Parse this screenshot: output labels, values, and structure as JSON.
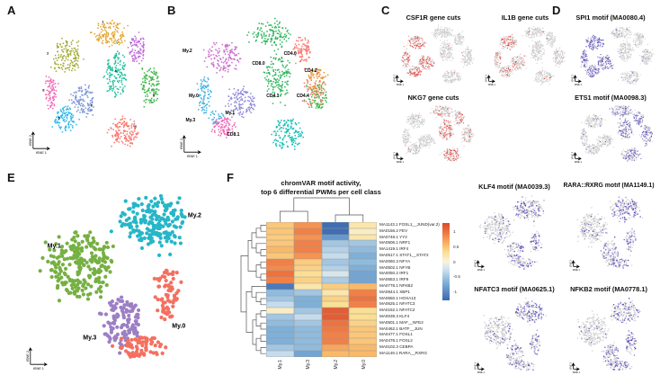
{
  "figure": {
    "panel_labels": {
      "A": "A",
      "B": "B",
      "C": "C",
      "D": "D",
      "E": "E",
      "F": "F"
    },
    "axis": {
      "x": "tSNE 1",
      "y": "tSNE 2"
    }
  },
  "panelC": {
    "plots": [
      {
        "title": "CSF1R gene cuts"
      },
      {
        "title": "IL1B gene cuts"
      },
      {
        "title": "NKG7 gene cuts"
      }
    ]
  },
  "panelD": {
    "plots": [
      {
        "title": "SPI1 motif (MA0080.4)"
      },
      {
        "title": "ETS1 motif (MA0098.3)"
      }
    ]
  },
  "motif_plots": [
    {
      "title": "KLF4 motif (MA0039.3)"
    },
    {
      "title": "RARA::RXRG motif (MA1149.1)"
    },
    {
      "title": "NFATC3 motif (MA0625.1)"
    },
    {
      "title": "NFKB2 motif (MA0778.1)"
    }
  ],
  "panelF": {
    "title_line1": "chromVAR motif activity,",
    "title_line2": "top 6 differential PWMs per cell class"
  },
  "chart_data": {
    "type": "heatmap",
    "title": "chromVAR motif activity, top 6 differential PWMs per cell class",
    "columns": [
      "My.1",
      "My.3",
      "My.2",
      "My.0"
    ],
    "rows": [
      "MA1143.1 FOSL1__JUND(var.2)",
      "MA0156.2 FEV",
      "MA0748.1 YY2",
      "MA0506.1 NRF1",
      "MA1419.1 IRF4",
      "MA0517.1 STAT1__STAT2",
      "MA0060.3 NFYA",
      "MA0502.1 NFYB",
      "MA0050.2 IRF1",
      "MA0653.1 IRF9",
      "MA0778.1 NFKB2",
      "MA0844.1 XBP1",
      "MA0650.1 HOXA13",
      "MA0625.1 NFATC3",
      "MA0152.1 NFATC2",
      "MA0039.3 KLF4",
      "MA0501.1 MAF__NFE2",
      "MA0462.1 BATF__JUN",
      "MA0477.1 FOSL1",
      "MA0478.1 FOSL2",
      "MA0102.3 CEBPA",
      "MA1149.1 RARA__RXRG"
    ],
    "values": [
      [
        0.5,
        0.8,
        -1.25,
        0.2
      ],
      [
        0.5,
        0.9,
        -1.25,
        0.1
      ],
      [
        0.45,
        0.8,
        -0.9,
        0.2
      ],
      [
        0.5,
        0.9,
        -0.5,
        -0.5
      ],
      [
        0.6,
        0.9,
        -0.4,
        -0.6
      ],
      [
        0.5,
        0.8,
        -0.3,
        -0.7
      ],
      [
        0.9,
        0.45,
        -0.5,
        -0.6
      ],
      [
        0.85,
        0.4,
        -0.4,
        -0.7
      ],
      [
        1.0,
        0.3,
        -0.2,
        -0.8
      ],
      [
        0.9,
        0.4,
        -0.45,
        -0.8
      ],
      [
        -1.15,
        0.2,
        0.45,
        0.6
      ],
      [
        -0.6,
        -0.5,
        0.2,
        0.9
      ],
      [
        -0.5,
        -0.7,
        0.4,
        1.0
      ],
      [
        -0.3,
        -0.7,
        0.3,
        0.9
      ],
      [
        0.1,
        -0.5,
        1.15,
        0.3
      ],
      [
        -0.5,
        -0.3,
        1.15,
        0.3
      ],
      [
        -0.6,
        -0.5,
        1.0,
        0.4
      ],
      [
        -0.7,
        -0.6,
        0.95,
        0.5
      ],
      [
        -0.7,
        -0.6,
        0.9,
        0.5
      ],
      [
        -0.7,
        -0.6,
        0.9,
        0.5
      ],
      [
        -0.5,
        -0.6,
        0.7,
        0.6
      ],
      [
        -0.3,
        -0.8,
        0.6,
        0.6
      ]
    ],
    "colorbar_ticks": [
      "1",
      "0.5",
      "0",
      "-0.5",
      "-1"
    ],
    "value_domain": [
      -1.3,
      1.3
    ],
    "legend_position": "right"
  },
  "scatter": {
    "panelA": {
      "shape": "rect",
      "labelSize": 4,
      "clusters": [
        {
          "label": "1",
          "color": "#E2A32B",
          "label_pos": [
            0.55,
            0.05
          ],
          "blobs": [
            [
              0.6,
              0.13,
              0.11,
              0.085,
              130
            ]
          ]
        },
        {
          "label": "7",
          "color": "#BC66D9",
          "label_pos": [
            0.75,
            0.2
          ],
          "blobs": [
            [
              0.79,
              0.24,
              0.055,
              0.1,
              85
            ]
          ]
        },
        {
          "label": "3",
          "color": "#3FB54A",
          "label_pos": [
            0.91,
            0.57
          ],
          "blobs": [
            [
              0.885,
              0.5,
              0.06,
              0.135,
              120
            ]
          ]
        },
        {
          "label": "4",
          "color": "#1DBE9C",
          "label_pos": [
            0.64,
            0.4
          ],
          "blobs": [
            [
              0.64,
              0.42,
              0.075,
              0.15,
              150
            ]
          ]
        },
        {
          "label": "0",
          "color": "#F8766D",
          "label_pos": [
            0.78,
            0.79
          ],
          "blobs": [
            [
              0.7,
              0.82,
              0.1,
              0.095,
              140
            ]
          ]
        },
        {
          "label": "2",
          "color": "#A2A832",
          "label_pos": [
            0.16,
            0.27
          ],
          "blobs": [
            [
              0.295,
              0.29,
              0.1,
              0.105,
              140
            ]
          ]
        },
        {
          "label": "8",
          "color": "#F263B5",
          "label_pos": [
            0.13,
            0.53
          ],
          "blobs": [
            [
              0.175,
              0.55,
              0.04,
              0.125,
              75
            ]
          ]
        },
        {
          "label": "6",
          "color": "#7D96D8",
          "label_pos": [
            0.47,
            0.64
          ],
          "blobs": [
            [
              0.41,
              0.6,
              0.085,
              0.1,
              125
            ]
          ]
        },
        {
          "label": "5",
          "color": "#2CB8E8",
          "label_pos": [
            0.24,
            0.73
          ],
          "blobs": [
            [
              0.275,
              0.73,
              0.075,
              0.085,
              105
            ]
          ]
        }
      ]
    },
    "panelB": {
      "shape": "rect",
      "labelSize": 5,
      "clusters": [
        {
          "label": "My.2",
          "color": "#C96BC9",
          "label_pos": [
            0.07,
            0.25
          ],
          "blobs": [
            [
              0.295,
              0.29,
              0.1,
              0.105,
              140
            ]
          ]
        },
        {
          "label": "My.0",
          "color": "#41B1E4",
          "label_pos": [
            0.11,
            0.56
          ],
          "blobs": [
            [
              0.175,
              0.55,
              0.04,
              0.125,
              80
            ],
            [
              0.24,
              0.7,
              0.05,
              0.05,
              30
            ]
          ]
        },
        {
          "label": "My.3",
          "color": "#F263B5",
          "label_pos": [
            0.09,
            0.73
          ],
          "blobs": [
            [
              0.3,
              0.765,
              0.07,
              0.065,
              90
            ]
          ]
        },
        {
          "label": "My.1",
          "color": "#8F8BD8",
          "label_pos": [
            0.34,
            0.68
          ],
          "blobs": [
            [
              0.41,
              0.6,
              0.085,
              0.1,
              130
            ]
          ]
        },
        {
          "label": "CD8.0",
          "color": "#2EB55D",
          "label_pos": [
            0.52,
            0.34
          ],
          "blobs": [
            [
              0.6,
              0.13,
              0.11,
              0.085,
              130
            ],
            [
              0.64,
              0.42,
              0.075,
              0.15,
              150
            ]
          ]
        },
        {
          "label": "CD8.1",
          "color": "#17BDB3",
          "label_pos": [
            0.36,
            0.83
          ],
          "blobs": [
            [
              0.7,
              0.82,
              0.1,
              0.095,
              140
            ]
          ]
        },
        {
          "label": "CD4.0",
          "color": "#F8766D",
          "label_pos": [
            0.72,
            0.27
          ],
          "blobs": [
            [
              0.79,
              0.24,
              0.055,
              0.1,
              85
            ]
          ]
        },
        {
          "label": "CD4.2",
          "color": "#E8923E",
          "label_pos": [
            0.85,
            0.39
          ],
          "blobs": [
            [
              0.885,
              0.45,
              0.06,
              0.08,
              80
            ]
          ]
        },
        {
          "label": "CD4.4",
          "color": "#3FB54A",
          "label_pos": [
            0.8,
            0.56
          ],
          "blobs": [
            [
              0.885,
              0.56,
              0.06,
              0.085,
              80
            ]
          ]
        },
        {
          "label": "CD4.1",
          "color": "#F8766D",
          "label_pos": [
            0.61,
            0.56
          ],
          "blobs": [
            [
              0.865,
              0.53,
              0.065,
              0.11,
              45
            ]
          ]
        }
      ]
    },
    "panelE": {
      "shape": "circle",
      "labelSize": 7,
      "clusters": [
        {
          "label": "My.1",
          "color": "#76B043",
          "label_pos": [
            0.16,
            0.34
          ],
          "blobs": [
            [
              0.3,
              0.44,
              0.15,
              0.17,
              240
            ]
          ]
        },
        {
          "label": "My.2",
          "color": "#25B6C8",
          "label_pos": [
            0.87,
            0.18
          ],
          "blobs": [
            [
              0.66,
              0.21,
              0.16,
              0.125,
              190
            ]
          ]
        },
        {
          "label": "My.3",
          "color": "#9C7FC4",
          "label_pos": [
            0.34,
            0.82
          ],
          "blobs": [
            [
              0.5,
              0.74,
              0.09,
              0.13,
              120
            ]
          ]
        },
        {
          "label": "My.0",
          "color": "#F4705F",
          "label_pos": [
            0.79,
            0.76
          ],
          "blobs": [
            [
              0.73,
              0.6,
              0.06,
              0.13,
              70
            ],
            [
              0.6,
              0.87,
              0.11,
              0.055,
              70
            ]
          ]
        }
      ]
    },
    "gray": "#c9c9c9",
    "features": {
      "csf1r": {
        "base": "panelA",
        "color": "#e0342b",
        "others": 0.02,
        "hl": {
          "2": 0.6,
          "8": 0.55,
          "5": 0.55,
          "6": 0.55
        }
      },
      "il1b": {
        "base": "panelA",
        "color": "#e0342b",
        "others": 0.03,
        "hl": {
          "2": 0.33,
          "8": 0.3,
          "5": 0.3,
          "6": 0.3
        }
      },
      "nkg7": {
        "base": "panelA",
        "color": "#e0342b",
        "others": 0.03,
        "hl": {
          "4": 0.5,
          "0": 0.52,
          "1": 0.22,
          "7": 0.28,
          "3": 0.16
        }
      },
      "spi1": {
        "base": "panelA",
        "color": "#4a3cb4",
        "others": 0.04,
        "hl": {
          "2": 0.78,
          "8": 0.7,
          "5": 0.72,
          "6": 0.75
        }
      },
      "ets1": {
        "base": "panelA",
        "color": "#4a3cb4",
        "others": 0.05,
        "hl": {
          "1": 0.5,
          "7": 0.5,
          "3": 0.55,
          "4": 0.5,
          "0": 0.55
        }
      },
      "klf4": {
        "base": "panelE",
        "color": "#4a3cb4",
        "others": 0.1,
        "hl": {
          "My.2": 0.4,
          "My.0": 0.45,
          "My.3": 0.3,
          "My.1": 0.12
        }
      },
      "rara": {
        "base": "panelE",
        "color": "#4a3cb4",
        "others": 0.1,
        "hl": {
          "My.2": 0.45,
          "My.0": 0.5,
          "My.3": 0.33,
          "My.1": 0.12
        }
      },
      "nfatc3": {
        "base": "panelE",
        "color": "#4a3cb4",
        "others": 0.1,
        "hl": {
          "My.2": 0.45,
          "My.0": 0.4,
          "My.3": 0.3,
          "My.1": 0.18
        }
      },
      "nfkb2": {
        "base": "panelE",
        "color": "#4a3cb4",
        "others": 0.1,
        "hl": {
          "My.2": 0.4,
          "My.0": 0.55,
          "My.3": 0.35,
          "My.1": 0.1
        }
      }
    }
  }
}
